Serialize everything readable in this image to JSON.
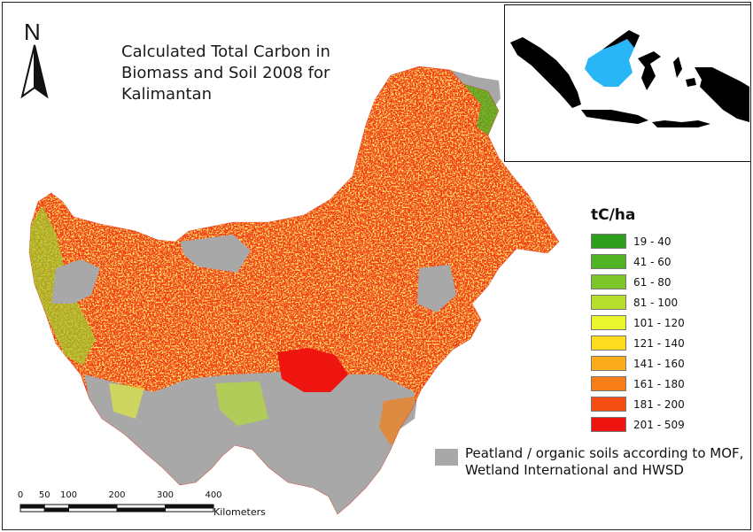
{
  "map": {
    "title_lines": [
      "Calculated Total Carbon in",
      "Biomass and Soil 2008 for",
      "Kalimantan"
    ],
    "north_label": "N",
    "colors": {
      "peatland": "#a8a8a8",
      "inset_highlight": "#29b6f6",
      "inset_land": "#000000"
    }
  },
  "legend": {
    "title": "tC/ha",
    "classes": [
      {
        "label": "19 - 40",
        "color": "#2e9e1f"
      },
      {
        "label": "41 - 60",
        "color": "#4fb323"
      },
      {
        "label": "61 - 80",
        "color": "#7cc62a"
      },
      {
        "label": "81 - 100",
        "color": "#b5df2c"
      },
      {
        "label": "101 - 120",
        "color": "#e9f52f"
      },
      {
        "label": "121 - 140",
        "color": "#fbdc1e"
      },
      {
        "label": "141 - 160",
        "color": "#fbac1c"
      },
      {
        "label": "161 - 180",
        "color": "#f77d16"
      },
      {
        "label": "181 - 200",
        "color": "#f34d12"
      },
      {
        "label": "201 - 509",
        "color": "#ee1410"
      }
    ]
  },
  "peat_legend": {
    "line1": "Peatland / organic soils according to MOF,",
    "line2": "Wetland International and HWSD"
  },
  "scalebar": {
    "ticks": [
      "0",
      "50",
      "100",
      "200",
      "300",
      "400"
    ],
    "unit": "Kilometers"
  }
}
